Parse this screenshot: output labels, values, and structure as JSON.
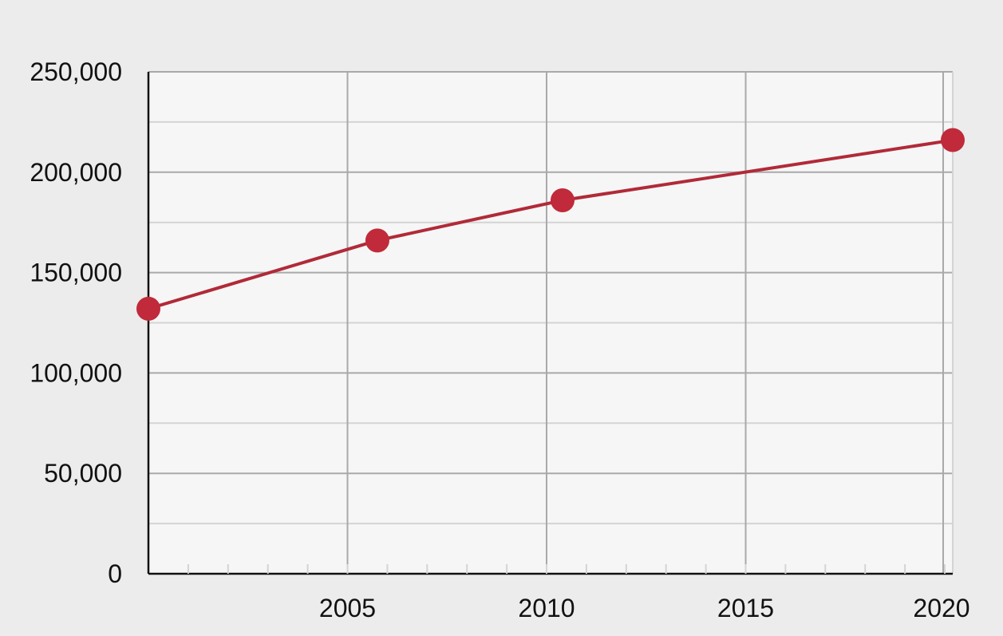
{
  "chart_data": {
    "type": "line",
    "x": [
      2000,
      2005.75,
      2010.4,
      2020.2
    ],
    "series": [
      {
        "values": [
          132000,
          166000,
          186000,
          216000
        ]
      }
    ],
    "xlim": [
      2000,
      2020.2
    ],
    "ylim": [
      0,
      250000
    ],
    "x_ticks": [
      2005,
      2010,
      2015,
      2020
    ],
    "x_tick_labels": [
      "2005",
      "2010",
      "2015",
      "2020"
    ],
    "x_minor_step": 1,
    "y_ticks": [
      0,
      50000,
      100000,
      150000,
      200000,
      250000
    ],
    "y_tick_labels": [
      "0",
      "50,000",
      "100,000",
      "150,000",
      "200,000",
      "250,000"
    ],
    "y_minor_step": 25000,
    "grid": true,
    "colors": {
      "line": "#b12a38",
      "marker": "#c02a3a",
      "plot_background": "#f6f6f6",
      "major_grid": "#a9a9a9",
      "minor_grid": "#d4d4d4",
      "axis": "#111111"
    }
  }
}
